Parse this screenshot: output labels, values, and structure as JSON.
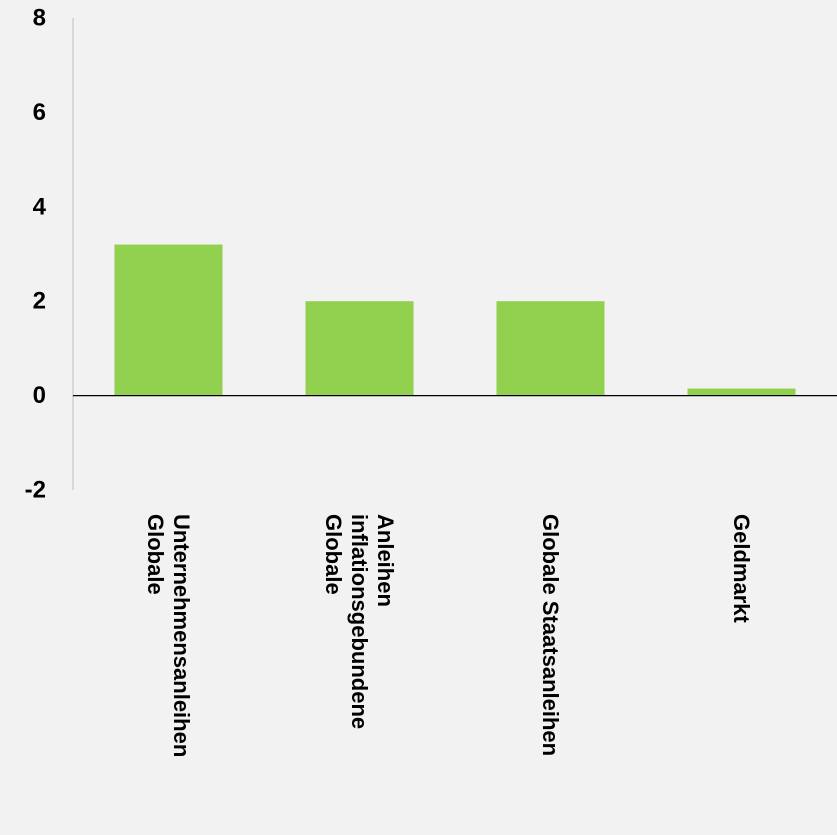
{
  "chart_data": {
    "type": "bar",
    "title": "",
    "xlabel": "",
    "ylabel": "",
    "ylim": [
      -2,
      8
    ],
    "yticks": [
      -2,
      0,
      2,
      4,
      6,
      8
    ],
    "grid": false,
    "legend": "none",
    "categories": [
      "Globale Unternehmensanleihen",
      "Globale inflationsgebundene Anleihen",
      "Globale Staatsanleihen",
      "Geldmarkt"
    ],
    "category_label_lines": [
      [
        "Globale",
        "Unternehmensanleihen"
      ],
      [
        "Globale",
        "inflationsgebundene",
        "Anleihen"
      ],
      [
        "Globale Staatsanleihen"
      ],
      [
        "Geldmarkt"
      ]
    ],
    "values": [
      3.2,
      2.0,
      2.0,
      0.15
    ],
    "colors": {
      "bar": "#92d050",
      "axis": "#000000",
      "y_axis": "#bfbfbf",
      "background": "#f2f2f2"
    }
  }
}
